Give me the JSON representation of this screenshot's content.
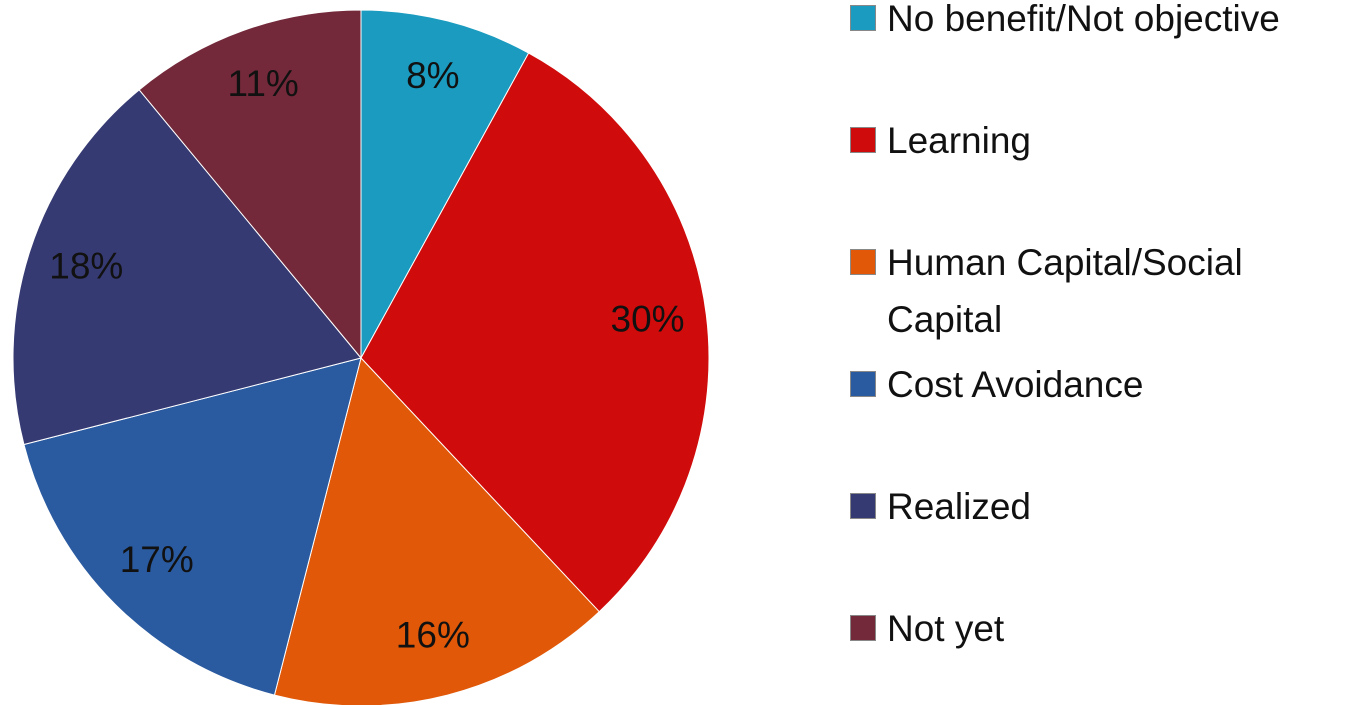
{
  "chart_data": {
    "type": "pie",
    "categories": [
      "No benefit/Not objective",
      "Learning",
      "Human Capital/Social Capital",
      "Cost Avoidance",
      "Realized",
      "Not yet"
    ],
    "values": [
      8,
      30,
      16,
      17,
      18,
      11
    ],
    "value_labels": [
      "8%",
      "30%",
      "16%",
      "17%",
      "18%",
      "11%"
    ],
    "colors": [
      "#1a9bbf",
      "#d00b0b",
      "#e05808",
      "#2a5aa0",
      "#363a72",
      "#73293a"
    ],
    "legend": "right"
  }
}
